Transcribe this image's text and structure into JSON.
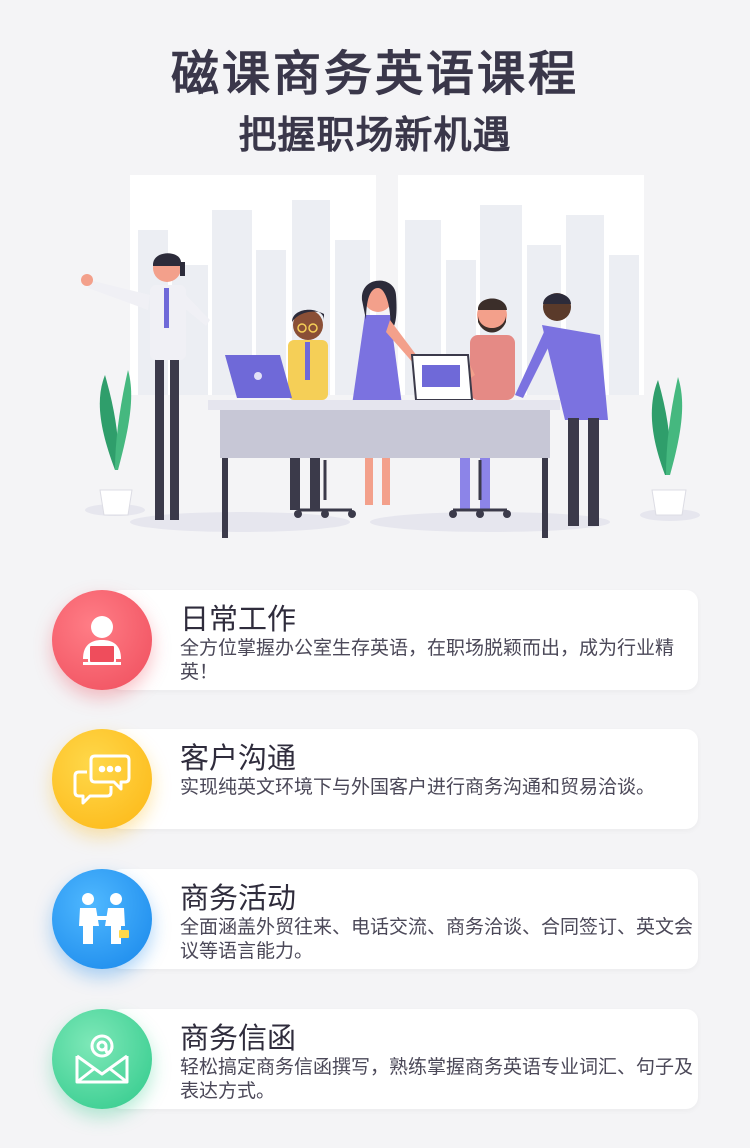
{
  "header": {
    "title": "磁课商务英语课程",
    "subtitle": "把握职场新机遇"
  },
  "features": [
    {
      "title": "日常工作",
      "description": "全方位掌握办公室生存英语，在职场脱颖而出，成为行业精英！",
      "icon": "office-worker-icon",
      "color": "#ef4d5c"
    },
    {
      "title": "客户沟通",
      "description": "实现纯英文环境下与外国客户进行商务沟通和贸易洽谈。",
      "icon": "chat-bubbles-icon",
      "color": "#fcb614"
    },
    {
      "title": "商务活动",
      "description": "全面涵盖外贸往来、电话交流、商务洽谈、合同签订、英文会议等语言能力。",
      "icon": "handshake-icon",
      "color": "#1786ea"
    },
    {
      "title": "商务信函",
      "description": "轻松搞定商务信函撰写，熟练掌握商务英语专业词汇、句子及表达方式。",
      "icon": "email-icon",
      "color": "#2ec98a"
    }
  ]
}
